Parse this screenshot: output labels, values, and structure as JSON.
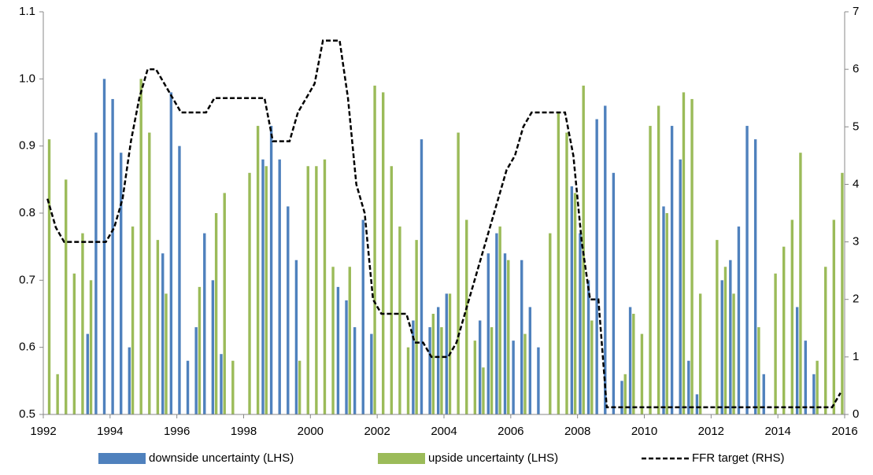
{
  "chart_data": {
    "type": "bar-line",
    "x": [
      1992,
      1992.25,
      1992.5,
      1992.75,
      1993,
      1993.25,
      1993.5,
      1993.75,
      1994,
      1994.25,
      1994.5,
      1994.75,
      1995,
      1995.25,
      1995.5,
      1995.75,
      1996,
      1996.25,
      1996.5,
      1996.75,
      1997,
      1997.25,
      1997.5,
      1997.75,
      1998,
      1998.25,
      1998.5,
      1998.75,
      1999,
      1999.25,
      1999.5,
      1999.75,
      2000,
      2000.25,
      2000.5,
      2000.75,
      2001,
      2001.25,
      2001.5,
      2001.75,
      2002,
      2002.25,
      2002.5,
      2002.75,
      2003,
      2003.25,
      2003.5,
      2003.75,
      2004,
      2004.25,
      2004.5,
      2004.75,
      2005,
      2005.25,
      2005.5,
      2005.75,
      2006,
      2006.25,
      2006.5,
      2006.75,
      2007,
      2007.25,
      2007.5,
      2007.75,
      2008,
      2008.25,
      2008.5,
      2008.75,
      2009,
      2009.25,
      2009.5,
      2009.75,
      2010,
      2010.25,
      2010.5,
      2010.75,
      2011,
      2011.25,
      2011.5,
      2011.75,
      2012,
      2012.25,
      2012.5,
      2012.75,
      2013,
      2013.25,
      2013.5,
      2013.75,
      2014,
      2014.25,
      2014.5,
      2014.75,
      2015,
      2015.25,
      2015.5,
      2015.75
    ],
    "series": [
      {
        "name": "downside uncertainty (LHS)",
        "type": "bar",
        "color": "#4f81bd",
        "values": [
          null,
          null,
          null,
          null,
          null,
          0.62,
          0.92,
          1.0,
          0.97,
          0.89,
          0.6,
          null,
          null,
          null,
          0.74,
          0.98,
          0.9,
          0.58,
          0.63,
          0.77,
          0.7,
          0.59,
          null,
          null,
          null,
          null,
          0.88,
          0.93,
          0.88,
          0.81,
          0.73,
          null,
          null,
          null,
          null,
          0.69,
          0.67,
          0.63,
          0.79,
          0.62,
          null,
          null,
          null,
          null,
          0.64,
          0.91,
          0.63,
          0.66,
          0.68,
          null,
          null,
          null,
          0.64,
          0.74,
          0.77,
          0.74,
          0.61,
          0.73,
          0.66,
          0.6,
          null,
          null,
          null,
          0.84,
          0.77,
          0.7,
          0.94,
          0.96,
          0.86,
          0.55,
          0.66,
          null,
          null,
          null,
          0.81,
          0.93,
          0.88,
          0.58,
          0.53,
          null,
          null,
          0.7,
          0.73,
          0.78,
          0.93,
          0.91,
          0.56,
          null,
          null,
          null,
          0.66,
          0.61,
          0.56,
          null,
          null,
          null
        ]
      },
      {
        "name": "upside uncertainty (LHS)",
        "type": "bar",
        "color": "#9bbb59",
        "values": [
          0.91,
          0.56,
          0.85,
          0.71,
          0.77,
          0.7,
          null,
          null,
          null,
          null,
          0.78,
          1.0,
          0.92,
          0.76,
          0.68,
          null,
          null,
          null,
          0.69,
          null,
          0.8,
          0.83,
          0.58,
          null,
          0.86,
          0.93,
          0.87,
          null,
          null,
          null,
          0.58,
          0.87,
          0.87,
          0.88,
          0.72,
          null,
          0.72,
          null,
          null,
          0.99,
          0.98,
          0.87,
          0.78,
          0.6,
          0.76,
          null,
          0.65,
          0.63,
          0.68,
          0.92,
          0.79,
          0.61,
          0.57,
          0.63,
          0.78,
          0.73,
          null,
          0.62,
          null,
          null,
          0.77,
          0.95,
          0.92,
          0.83,
          0.99,
          0.64,
          null,
          null,
          null,
          0.56,
          0.65,
          0.62,
          0.93,
          0.96,
          0.8,
          null,
          0.98,
          0.97,
          0.68,
          null,
          0.76,
          0.72,
          0.68,
          null,
          null,
          0.63,
          null,
          0.71,
          0.75,
          0.79,
          0.89,
          null,
          0.58,
          0.72,
          0.79,
          0.86
        ]
      },
      {
        "name": "FFR target (RHS)",
        "type": "line",
        "axis": "y2",
        "color": "#000000",
        "values": [
          3.75,
          3.25,
          3.0,
          3.0,
          3.0,
          3.0,
          3.0,
          3.0,
          3.25,
          3.75,
          4.75,
          5.5,
          6.0,
          6.0,
          5.75,
          5.5,
          5.25,
          5.25,
          5.25,
          5.25,
          5.5,
          5.5,
          5.5,
          5.5,
          5.5,
          5.5,
          5.5,
          4.75,
          4.75,
          4.75,
          5.25,
          5.5,
          5.75,
          6.5,
          6.5,
          6.5,
          5.5,
          4.0,
          3.5,
          2.0,
          1.75,
          1.75,
          1.75,
          1.75,
          1.25,
          1.25,
          1.0,
          1.0,
          1.0,
          1.25,
          1.75,
          2.25,
          2.75,
          3.25,
          3.75,
          4.25,
          4.5,
          5.0,
          5.25,
          5.25,
          5.25,
          5.25,
          5.25,
          4.5,
          3.0,
          2.0,
          2.0,
          0.125,
          0.125,
          0.125,
          0.125,
          0.125,
          0.125,
          0.125,
          0.125,
          0.125,
          0.125,
          0.125,
          0.125,
          0.125,
          0.125,
          0.125,
          0.125,
          0.125,
          0.125,
          0.125,
          0.125,
          0.125,
          0.125,
          0.125,
          0.125,
          0.125,
          0.125,
          0.125,
          0.125,
          0.375
        ]
      }
    ],
    "xlim": [
      1992,
      2016
    ],
    "xticks": [
      1992,
      1994,
      1996,
      1998,
      2000,
      2002,
      2004,
      2006,
      2008,
      2010,
      2012,
      2014,
      2016
    ],
    "ylim": [
      0.5,
      1.1
    ],
    "yticks": [
      0.5,
      0.6,
      0.7,
      0.8,
      0.9,
      {
        "value": 1,
        "label": "1.0"
      },
      1.1
    ],
    "y2lim": [
      0,
      7
    ],
    "y2ticks": [
      0,
      1,
      2,
      3,
      4,
      5,
      6,
      7
    ],
    "legend": "bottom"
  }
}
